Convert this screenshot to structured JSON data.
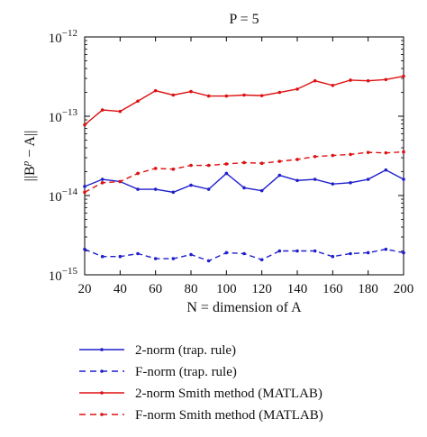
{
  "chart_data": {
    "type": "line",
    "title": "P = 5",
    "xlabel": "N = dimension of A",
    "ylabel": "||B^p − A||",
    "xlim": [
      20,
      200
    ],
    "ylim": [
      1e-15,
      1e-12
    ],
    "yscale": "log",
    "grid": false,
    "legend_position": "below plot",
    "x_ticks": [
      "20",
      "40",
      "60",
      "80",
      "100",
      "120",
      "140",
      "160",
      "180",
      "200"
    ],
    "y_ticks": [
      {
        "base": "10",
        "exp": "−15"
      },
      {
        "base": "10",
        "exp": "−14"
      },
      {
        "base": "10",
        "exp": "−13"
      },
      {
        "base": "10",
        "exp": "−12"
      }
    ],
    "x": [
      20,
      30,
      40,
      50,
      60,
      70,
      80,
      90,
      100,
      110,
      120,
      130,
      140,
      150,
      160,
      170,
      180,
      190,
      200
    ],
    "series": [
      {
        "name": "2-norm (trap. rule)",
        "color": "#1f1fcc",
        "dash": "solid",
        "marker": "dot",
        "values": [
          1.3e-14,
          1.6e-14,
          1.5e-14,
          1.2e-14,
          1.2e-14,
          1.1e-14,
          1.35e-14,
          1.2e-14,
          1.9e-14,
          1.25e-14,
          1.15e-14,
          1.8e-14,
          1.55e-14,
          1.6e-14,
          1.4e-14,
          1.45e-14,
          1.6e-14,
          2.1e-14,
          1.6e-14
        ]
      },
      {
        "name": "F-norm (trap. rule)",
        "color": "#1f1fcc",
        "dash": "dashed",
        "marker": "dot",
        "values": [
          2.1e-15,
          1.7e-15,
          1.7e-15,
          1.85e-15,
          1.6e-15,
          1.6e-15,
          1.8e-15,
          1.5e-15,
          1.9e-15,
          1.85e-15,
          1.55e-15,
          2e-15,
          2e-15,
          2e-15,
          1.7e-15,
          1.85e-15,
          1.9e-15,
          2.1e-15,
          1.9e-15
        ]
      },
      {
        "name": "2-norm Smith method (MATLAB)",
        "color": "#dd1111",
        "dash": "solid",
        "marker": "dot",
        "values": [
          7.8e-14,
          1.2e-13,
          1.15e-13,
          1.55e-13,
          2.1e-13,
          1.85e-13,
          2.05e-13,
          1.8e-13,
          1.8e-13,
          1.85e-13,
          1.82e-13,
          2e-13,
          2.2e-13,
          2.8e-13,
          2.45e-13,
          2.85e-13,
          2.8e-13,
          2.9e-13,
          3.2e-13
        ]
      },
      {
        "name": "F-norm Smith method (MATLAB)",
        "color": "#dd1111",
        "dash": "dashed",
        "marker": "dot",
        "values": [
          1.1e-14,
          1.45e-14,
          1.5e-14,
          1.9e-14,
          2.2e-14,
          2.15e-14,
          2.4e-14,
          2.4e-14,
          2.5e-14,
          2.6e-14,
          2.55e-14,
          2.7e-14,
          2.85e-14,
          3.1e-14,
          3.2e-14,
          3.3e-14,
          3.5e-14,
          3.45e-14,
          3.55e-14
        ]
      }
    ]
  }
}
